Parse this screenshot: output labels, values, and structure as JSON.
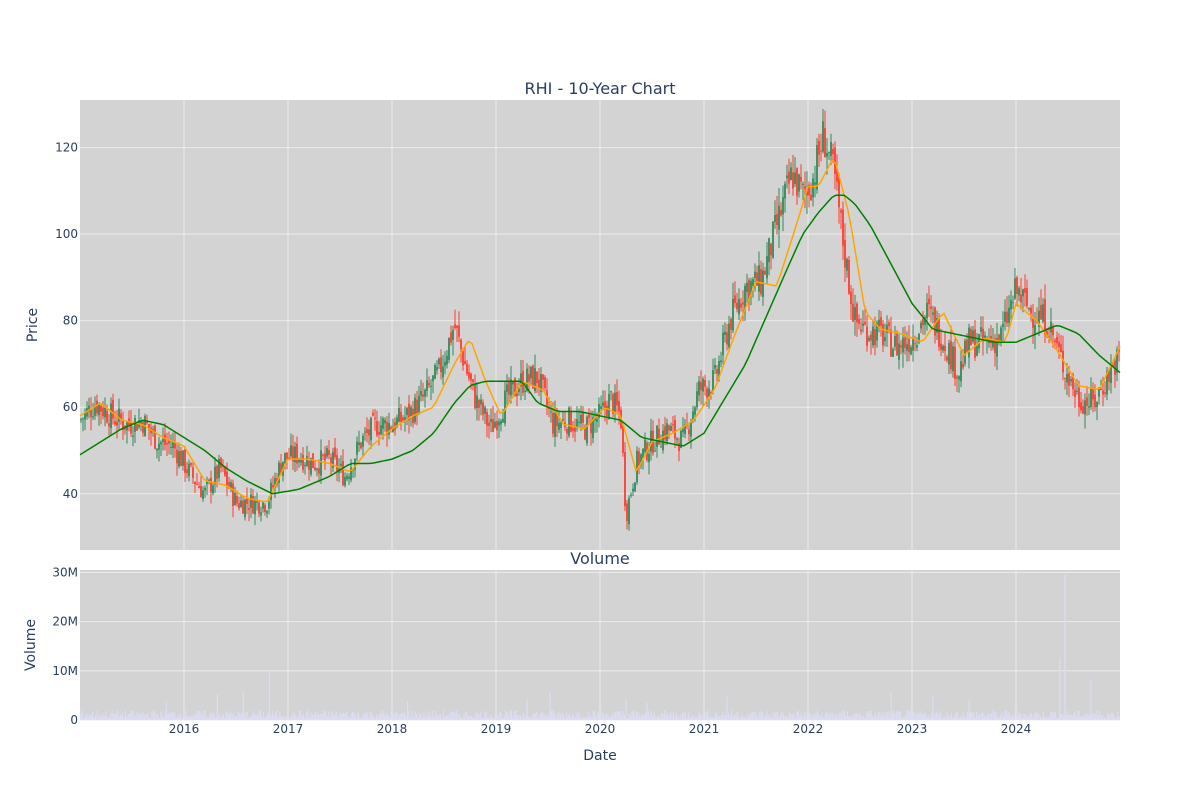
{
  "chart_data": [
    {
      "type": "candlestick",
      "title": "RHI - 10-Year Chart",
      "ylabel": "Price",
      "xlabel": "",
      "xlim": [
        2015.0,
        2025.0
      ],
      "ylim": [
        27,
        131
      ],
      "y_ticks": [
        40,
        60,
        80,
        100,
        120
      ],
      "grid": true,
      "legend": "none",
      "price_series_sparse": {
        "x": [
          2015.0,
          2015.15,
          2015.3,
          2015.45,
          2015.6,
          2015.75,
          2015.9,
          2016.05,
          2016.2,
          2016.35,
          2016.5,
          2016.65,
          2016.8,
          2016.95,
          2017.1,
          2017.25,
          2017.4,
          2017.55,
          2017.7,
          2017.85,
          2018.0,
          2018.15,
          2018.3,
          2018.45,
          2018.6,
          2018.7,
          2018.8,
          2018.95,
          2019.1,
          2019.25,
          2019.4,
          2019.55,
          2019.7,
          2019.85,
          2020.0,
          2020.1,
          2020.2,
          2020.25,
          2020.35,
          2020.5,
          2020.65,
          2020.8,
          2020.95,
          2021.1,
          2021.25,
          2021.4,
          2021.55,
          2021.7,
          2021.85,
          2021.95,
          2022.05,
          2022.15,
          2022.25,
          2022.35,
          2022.45,
          2022.55,
          2022.7,
          2022.85,
          2023.0,
          2023.15,
          2023.3,
          2023.45,
          2023.55,
          2023.7,
          2023.85,
          2024.0,
          2024.15,
          2024.3,
          2024.45,
          2024.6,
          2024.75,
          2024.9,
          2025.0
        ],
        "close": [
          57,
          61,
          58,
          56,
          57,
          52,
          51,
          45,
          40,
          46,
          38,
          38,
          38,
          48,
          49,
          47,
          48,
          44,
          52,
          56,
          56,
          58,
          62,
          68,
          79,
          70,
          62,
          55,
          62,
          66,
          67,
          56,
          57,
          55,
          58,
          62,
          58,
          35,
          47,
          52,
          55,
          52,
          64,
          66,
          80,
          88,
          89,
          102,
          114,
          109,
          113,
          123,
          114,
          96,
          80,
          78,
          77,
          74,
          76,
          82,
          76,
          68,
          75,
          75,
          76,
          87,
          82,
          80,
          70,
          62,
          61,
          68,
          72
        ]
      },
      "ma_short_sparse": {
        "name": "",
        "color": "#ffa500",
        "x": [
          2015.0,
          2015.2,
          2015.4,
          2015.6,
          2015.8,
          2016.0,
          2016.2,
          2016.4,
          2016.6,
          2016.8,
          2017.0,
          2017.2,
          2017.4,
          2017.6,
          2017.8,
          2018.0,
          2018.2,
          2018.4,
          2018.6,
          2018.75,
          2018.9,
          2019.05,
          2019.25,
          2019.45,
          2019.65,
          2019.85,
          2020.05,
          2020.2,
          2020.35,
          2020.5,
          2020.7,
          2020.9,
          2021.1,
          2021.3,
          2021.5,
          2021.7,
          2021.9,
          2022.0,
          2022.1,
          2022.25,
          2022.4,
          2022.55,
          2022.7,
          2022.9,
          2023.1,
          2023.3,
          2023.5,
          2023.7,
          2023.9,
          2024.0,
          2024.2,
          2024.4,
          2024.6,
          2024.8,
          2025.0
        ],
        "values": [
          58,
          61,
          57,
          56,
          53,
          51,
          43,
          42,
          39,
          38,
          48,
          48,
          47,
          45,
          51,
          55,
          58,
          60,
          70,
          76,
          66,
          58,
          66,
          64,
          56,
          55,
          60,
          58,
          45,
          52,
          54,
          57,
          64,
          77,
          89,
          88,
          103,
          111,
          111,
          118,
          104,
          82,
          78,
          77,
          75,
          82,
          72,
          76,
          75,
          84,
          80,
          73,
          65,
          64,
          74
        ]
      },
      "ma_long_sparse": {
        "name": "",
        "color": "#008000",
        "x": [
          2015.0,
          2015.2,
          2015.4,
          2015.6,
          2015.8,
          2016.0,
          2016.2,
          2016.4,
          2016.6,
          2016.85,
          2017.1,
          2017.4,
          2017.6,
          2017.8,
          2018.0,
          2018.2,
          2018.4,
          2018.6,
          2018.75,
          2018.9,
          2019.1,
          2019.25,
          2019.4,
          2019.6,
          2019.8,
          2020.0,
          2020.2,
          2020.4,
          2020.6,
          2020.8,
          2021.0,
          2021.2,
          2021.4,
          2021.6,
          2021.8,
          2021.95,
          2022.1,
          2022.25,
          2022.35,
          2022.45,
          2022.6,
          2022.8,
          2023.0,
          2023.2,
          2023.4,
          2023.6,
          2023.8,
          2024.0,
          2024.2,
          2024.4,
          2024.6,
          2024.8,
          2025.0
        ],
        "values": [
          49,
          52,
          55,
          57,
          56,
          53,
          50,
          46,
          43,
          40,
          41,
          44,
          47,
          47,
          48,
          50,
          54,
          61,
          65,
          66,
          66,
          66,
          61,
          59,
          59,
          58,
          57,
          53,
          52,
          51,
          54,
          62,
          70,
          81,
          92,
          100,
          105,
          109,
          109,
          107,
          102,
          93,
          84,
          78,
          77,
          76,
          75,
          75,
          77,
          79,
          77,
          72,
          68
        ]
      }
    },
    {
      "type": "bar",
      "title": "Volume",
      "xlabel": "Date",
      "ylabel": "Volume",
      "ylim": [
        0,
        30500000
      ],
      "y_ticks": [
        0,
        10000000,
        20000000,
        30000000
      ],
      "y_tick_labels": [
        "0",
        "10M",
        "20M",
        "30M"
      ],
      "grid": true,
      "color": "#dcdcf5",
      "baseline_volume": 1000000,
      "spikes": {
        "x": [
          2015.83,
          2016.32,
          2016.57,
          2016.82,
          2018.15,
          2019.3,
          2019.52,
          2020.25,
          2020.45,
          2021.22,
          2022.8,
          2023.2,
          2023.55,
          2024.42,
          2024.47,
          2024.72
        ],
        "values": [
          3500000,
          5200000,
          5900000,
          9800000,
          3800000,
          4100000,
          5600000,
          4300000,
          3500000,
          4800000,
          5700000,
          5000000,
          4200000,
          12500000,
          29500000,
          8200000
        ]
      }
    }
  ],
  "x_ticks": [
    "2016",
    "2017",
    "2018",
    "2019",
    "2020",
    "2021",
    "2022",
    "2023",
    "2024"
  ],
  "x_tick_values": [
    2016,
    2017,
    2018,
    2019,
    2020,
    2021,
    2022,
    2023,
    2024
  ],
  "colors": {
    "plot_bg": "#d3d3d3",
    "grid": "#ebebeb",
    "up": "#2e8b57",
    "down": "#ff3b2f",
    "text": "#2a3f5f"
  }
}
